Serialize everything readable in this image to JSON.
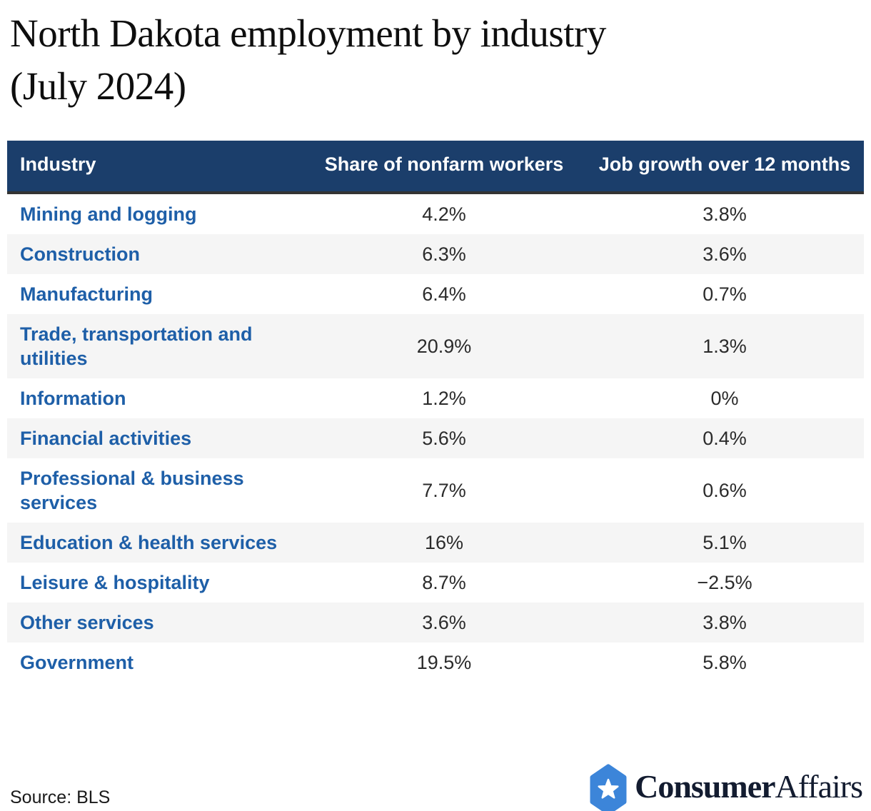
{
  "title": {
    "line1": "North Dakota employment by industry",
    "line2": "(July 2024)"
  },
  "table": {
    "columns": [
      "Industry",
      "Share of nonfarm workers",
      "Job growth over 12 months"
    ],
    "rows": [
      {
        "industry": "Mining and logging",
        "share": "4.2%",
        "growth": "3.8%"
      },
      {
        "industry": "Construction",
        "share": "6.3%",
        "growth": "3.6%"
      },
      {
        "industry": "Manufacturing",
        "share": "6.4%",
        "growth": "0.7%"
      },
      {
        "industry": "Trade, transportation and utilities",
        "share": "20.9%",
        "growth": "1.3%"
      },
      {
        "industry": "Information",
        "share": "1.2%",
        "growth": "0%"
      },
      {
        "industry": "Financial activities",
        "share": "5.6%",
        "growth": "0.4%"
      },
      {
        "industry": "Professional & business services",
        "share": "7.7%",
        "growth": "0.6%"
      },
      {
        "industry": "Education & health services",
        "share": "16%",
        "growth": "5.1%"
      },
      {
        "industry": "Leisure & hospitality",
        "share": "8.7%",
        "growth": "−2.5%"
      },
      {
        "industry": "Other services",
        "share": "3.6%",
        "growth": "3.8%"
      },
      {
        "industry": "Government",
        "share": "19.5%",
        "growth": "5.8%"
      }
    ]
  },
  "chart_data": {
    "type": "table",
    "title": "North Dakota employment by industry (July 2024)",
    "columns": [
      "Industry",
      "Share of nonfarm workers",
      "Job growth over 12 months"
    ],
    "units": "percent",
    "rows": [
      [
        "Mining and logging",
        4.2,
        3.8
      ],
      [
        "Construction",
        6.3,
        3.6
      ],
      [
        "Manufacturing",
        6.4,
        0.7
      ],
      [
        "Trade, transportation and utilities",
        20.9,
        1.3
      ],
      [
        "Information",
        1.2,
        0
      ],
      [
        "Financial activities",
        5.6,
        0.4
      ],
      [
        "Professional & business services",
        7.7,
        0.6
      ],
      [
        "Education & health services",
        16,
        5.1
      ],
      [
        "Leisure & hospitality",
        8.7,
        -2.5
      ],
      [
        "Other services",
        3.6,
        3.8
      ],
      [
        "Government",
        19.5,
        5.8
      ]
    ],
    "source": "BLS"
  },
  "footer": {
    "source": "Source: BLS",
    "brand_part1": "Consumer",
    "brand_part2": "Affairs"
  },
  "colors": {
    "header_bg": "#1b3e6b",
    "header_border": "#333333",
    "row_label_blue": "#1e5fa8",
    "row_alt_bg": "#f5f5f5",
    "value_text": "#2b2b2b",
    "logo_blue": "#3c85d9",
    "logo_text": "#131c30"
  }
}
